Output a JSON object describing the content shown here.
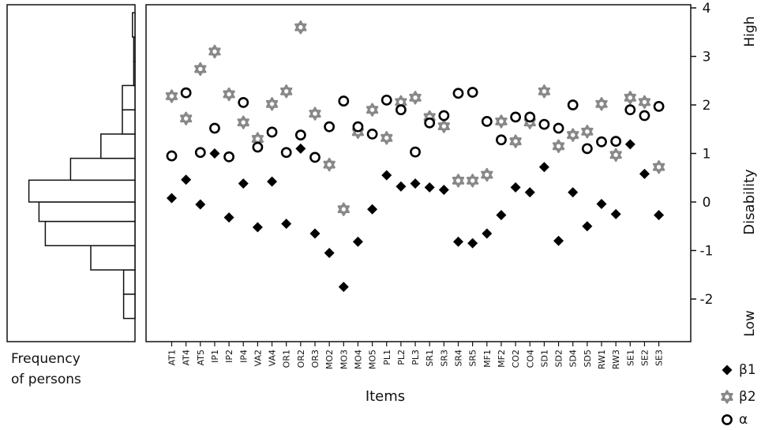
{
  "chart_data": {
    "type": "scatter",
    "title": "",
    "xlabel": "Items",
    "ylabel": "Disability",
    "y_high_label": "High",
    "y_low_label": "Low",
    "histogram_label_line1": "Frequency",
    "histogram_label_line2": "of persons",
    "ylim": [
      -2.8,
      4.0
    ],
    "yticks": [
      -2,
      -1,
      0,
      1,
      2,
      3,
      4
    ],
    "ytick_labels": [
      "-2",
      "-1",
      "0",
      "1",
      "2",
      "3",
      "4"
    ],
    "grid": false,
    "legend_position": "bottom-right",
    "categories": [
      "AT1",
      "AT4",
      "AT5",
      "IP1",
      "IP2",
      "IP4",
      "VA2",
      "VA4",
      "OR1",
      "OR2",
      "OR3",
      "MO2",
      "MO3",
      "MO4",
      "MO5",
      "PL1",
      "PL2",
      "PL3",
      "SR1",
      "SR3",
      "SR4",
      "SR5",
      "MF1",
      "MF2",
      "CO2",
      "CO4",
      "SD1",
      "SD2",
      "SD4",
      "SD5",
      "RW1",
      "RW3",
      "SE1",
      "SE2",
      "SE3"
    ],
    "series": [
      {
        "name": "β1",
        "marker": "diamond",
        "color": "#000000",
        "values": [
          0.08,
          0.46,
          -0.05,
          1.0,
          -0.32,
          0.38,
          -0.52,
          0.42,
          -0.45,
          1.1,
          -0.65,
          -1.05,
          -1.75,
          -0.82,
          -0.15,
          0.55,
          0.32,
          0.38,
          0.3,
          0.25,
          -0.82,
          -0.85,
          -0.65,
          -0.27,
          0.3,
          0.2,
          0.72,
          -0.8,
          0.2,
          -0.5,
          -0.04,
          -0.25,
          1.19,
          0.58,
          -0.27
        ]
      },
      {
        "name": "β2",
        "marker": "star",
        "color": "#888888",
        "values": [
          2.18,
          1.72,
          2.74,
          3.1,
          2.22,
          1.64,
          1.3,
          2.02,
          2.28,
          3.6,
          1.82,
          0.77,
          -0.15,
          1.44,
          1.9,
          1.32,
          2.06,
          2.15,
          1.75,
          1.56,
          0.44,
          0.44,
          0.56,
          1.66,
          1.25,
          1.64,
          2.28,
          1.15,
          1.38,
          1.45,
          2.02,
          0.97,
          2.15,
          2.06,
          0.72
        ]
      },
      {
        "name": "α",
        "marker": "circle",
        "color": "#000000",
        "values": [
          0.95,
          2.25,
          1.02,
          1.52,
          0.93,
          2.05,
          1.13,
          1.44,
          1.02,
          1.38,
          0.92,
          1.55,
          2.08,
          1.55,
          1.4,
          2.1,
          1.9,
          1.03,
          1.63,
          1.78,
          2.24,
          2.26,
          1.66,
          1.28,
          1.75,
          1.75,
          1.6,
          1.52,
          2.0,
          1.1,
          1.24,
          1.25,
          1.9,
          1.78,
          1.97
        ]
      }
    ],
    "histogram": {
      "bin_edges": [
        -2.4,
        -1.9,
        -1.4,
        -0.9,
        -0.4,
        0.0,
        0.45,
        0.9,
        1.4,
        1.9,
        2.4,
        2.9,
        3.4,
        3.9
      ],
      "counts": [
        0.09,
        0.09,
        0.35,
        0.71,
        0.76,
        0.84,
        0.51,
        0.27,
        0.1,
        0.1,
        0.01,
        0.01,
        0.02
      ]
    }
  }
}
